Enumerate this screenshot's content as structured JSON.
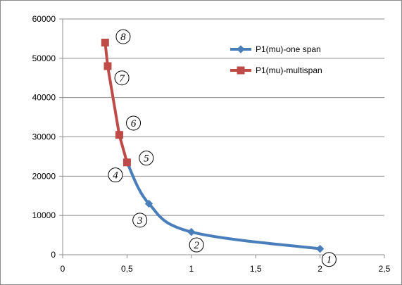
{
  "chart_data": {
    "type": "line",
    "title": "",
    "xlabel": "",
    "ylabel": "",
    "xlim": [
      0,
      2.5
    ],
    "ylim": [
      0,
      60000
    ],
    "grid": true,
    "legend_position": "top-right",
    "x_ticks": [
      0,
      0.5,
      1,
      1.5,
      2,
      2.5
    ],
    "x_tick_labels": [
      "0",
      "0,5",
      "1",
      "1,5",
      "2",
      "2,5"
    ],
    "y_ticks": [
      0,
      10000,
      20000,
      30000,
      40000,
      50000,
      60000
    ],
    "y_tick_labels": [
      "0",
      "10000",
      "20000",
      "30000",
      "40000",
      "50000",
      "60000"
    ],
    "series": [
      {
        "name": "P1(mu)-one span",
        "color": "#4a7ebb",
        "marker": "diamond",
        "smooth": true,
        "points": [
          {
            "x": 2.0,
            "y": 1500
          },
          {
            "x": 1.0,
            "y": 5800
          },
          {
            "x": 0.67,
            "y": 13000
          },
          {
            "x": 0.5,
            "y": 23500
          }
        ]
      },
      {
        "name": "P1(mu)-multispan",
        "color": "#be4b48",
        "marker": "square",
        "smooth": false,
        "points": [
          {
            "x": 0.5,
            "y": 23500
          },
          {
            "x": 0.44,
            "y": 30500
          },
          {
            "x": 0.35,
            "y": 48000
          },
          {
            "x": 0.33,
            "y": 54000
          }
        ]
      }
    ],
    "annotations": [
      {
        "text": "1",
        "x": 2.07,
        "y": -1200
      },
      {
        "text": "2",
        "x": 1.04,
        "y": 2500
      },
      {
        "text": "3",
        "x": 0.6,
        "y": 8800
      },
      {
        "text": "4",
        "x": 0.41,
        "y": 20300
      },
      {
        "text": "5",
        "x": 0.65,
        "y": 24600
      },
      {
        "text": "6",
        "x": 0.55,
        "y": 33500
      },
      {
        "text": "7",
        "x": 0.46,
        "y": 45000
      },
      {
        "text": "8",
        "x": 0.47,
        "y": 55500
      }
    ]
  }
}
